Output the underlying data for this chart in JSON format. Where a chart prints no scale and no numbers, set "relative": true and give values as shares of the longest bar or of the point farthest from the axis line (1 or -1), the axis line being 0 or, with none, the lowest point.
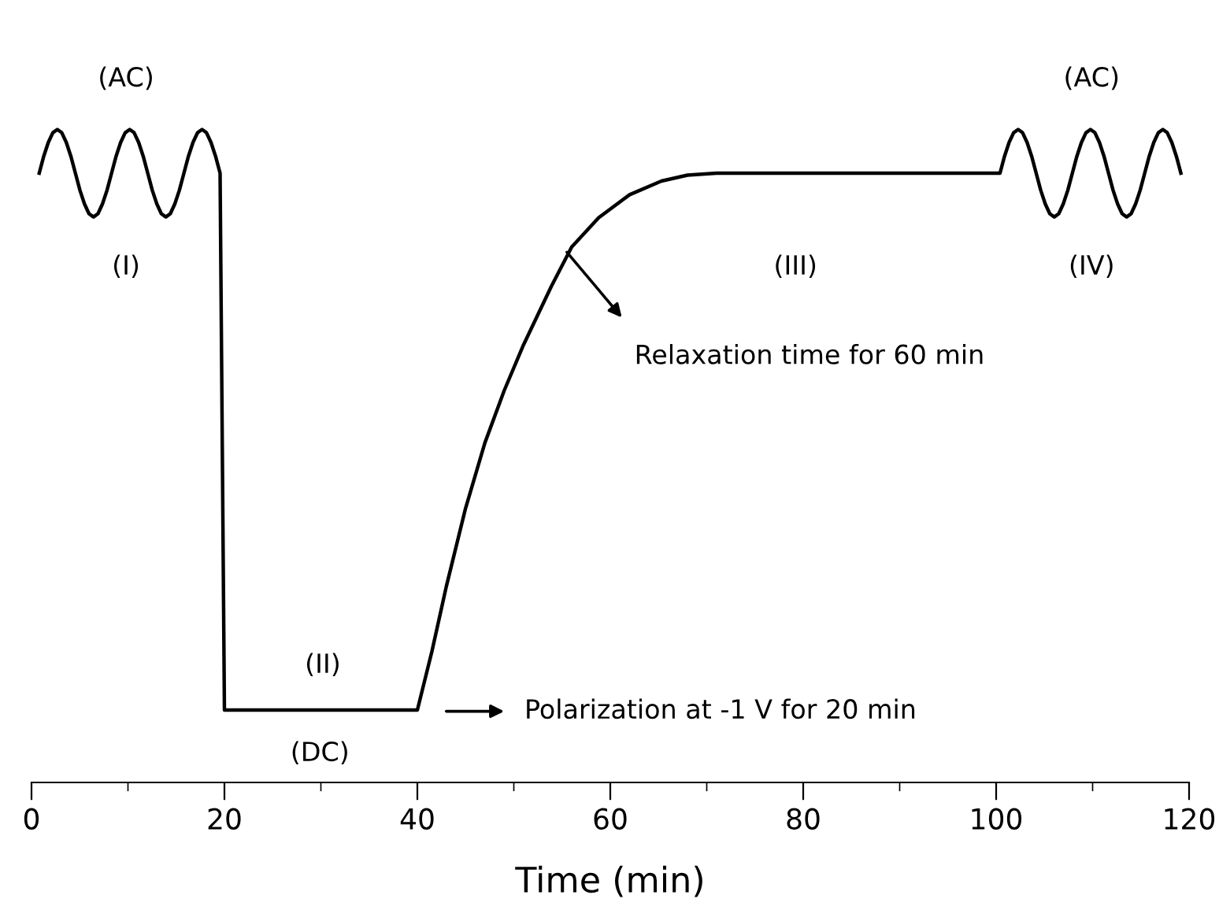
{
  "chart_data": {
    "type": "line",
    "relative": true,
    "xlabel": "Time (min)",
    "xlim": [
      0,
      120
    ],
    "xticks": [
      0,
      {
        "value": 10,
        "label": null
      },
      20,
      {
        "value": 30,
        "label": null
      },
      40,
      {
        "value": 50,
        "label": null
      },
      60,
      {
        "value": 70,
        "label": null
      },
      80,
      {
        "value": 90,
        "label": null
      },
      100,
      {
        "value": 110,
        "label": null
      },
      120
    ],
    "series": [
      {
        "color": "#000000",
        "x": [
          0.8,
          1.27,
          1.74,
          2.21,
          2.68,
          3.14,
          3.61,
          4.08,
          4.55,
          5.02,
          5.49,
          5.96,
          6.43,
          6.89,
          7.36,
          7.83,
          8.3,
          8.77,
          9.24,
          9.71,
          10.18,
          10.64,
          11.11,
          11.58,
          12.05,
          12.52,
          12.99,
          13.46,
          13.93,
          14.39,
          14.86,
          15.33,
          15.8,
          16.27,
          16.74,
          17.21,
          17.68,
          18.14,
          18.61,
          19.08,
          19.55,
          20,
          40,
          41.5,
          43,
          45,
          47,
          49,
          51,
          53.9,
          56,
          58.8,
          62,
          65.3,
          68,
          71,
          100.4,
          100.87,
          101.34,
          101.81,
          102.28,
          102.74,
          103.21,
          103.68,
          104.15,
          104.62,
          105.09,
          105.56,
          106.03,
          106.49,
          106.96,
          107.43,
          107.9,
          108.37,
          108.84,
          109.31,
          109.78,
          110.24,
          110.71,
          111.18,
          111.65,
          112.12,
          112.59,
          113.06,
          113.53,
          113.99,
          114.46,
          114.93,
          115.4,
          115.87,
          116.34,
          116.81,
          117.28,
          117.74,
          118.21,
          118.68,
          119.15
        ],
        "values": [
          0.933,
          0.959,
          0.98,
          0.995,
          1.0,
          0.995,
          0.98,
          0.959,
          0.933,
          0.907,
          0.886,
          0.871,
          0.866,
          0.871,
          0.886,
          0.907,
          0.933,
          0.959,
          0.98,
          0.995,
          1.0,
          0.995,
          0.98,
          0.959,
          0.933,
          0.907,
          0.886,
          0.871,
          0.866,
          0.871,
          0.886,
          0.907,
          0.933,
          0.959,
          0.98,
          0.995,
          1.0,
          0.995,
          0.98,
          0.959,
          0.933,
          0.111,
          0.111,
          0.2,
          0.3,
          0.42,
          0.52,
          0.6,
          0.67,
          0.76,
          0.82,
          0.865,
          0.9,
          0.921,
          0.93,
          0.933,
          0.933,
          0.959,
          0.98,
          0.995,
          1.0,
          0.995,
          0.98,
          0.959,
          0.933,
          0.907,
          0.886,
          0.871,
          0.866,
          0.871,
          0.886,
          0.907,
          0.933,
          0.959,
          0.98,
          0.995,
          1.0,
          0.995,
          0.98,
          0.959,
          0.933,
          0.907,
          0.886,
          0.871,
          0.866,
          0.871,
          0.886,
          0.907,
          0.933,
          0.959,
          0.98,
          0.995,
          1.0,
          0.995,
          0.98,
          0.959,
          0.933
        ]
      }
    ],
    "annotations": [
      "Relaxation time for 60 min",
      "Polarization at -1 V for 20 min",
      "(AC)",
      "(I)",
      "(II)",
      "(DC)",
      "(III)",
      "(IV)",
      "(AC)"
    ]
  }
}
